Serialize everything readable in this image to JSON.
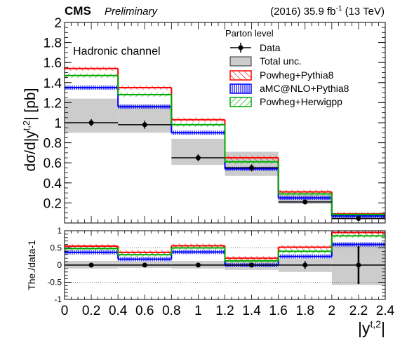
{
  "header": {
    "experiment": "CMS",
    "status": "Preliminary",
    "lumi_prefix": "(2016) 35.9 fb",
    "lumi_exp": "-1",
    "lumi_suffix": " (13 TeV)"
  },
  "colors": {
    "data": "#000000",
    "total_unc": "#cccccc",
    "powheg_pythia8": "#ff0000",
    "amcatnlo_pythia8": "#0000ff",
    "powheg_herwigpp": "#00aa00"
  },
  "chart_data": [
    {
      "id": "main",
      "type": "step",
      "annotation": "Hadronic channel",
      "ylabel": {
        "prefix": "dσ/d|y",
        "sup": "t,2",
        "suffix": "| [pb]"
      },
      "legend_title": "Parton level",
      "legend_placement": "top-right",
      "xlim": [
        0,
        2.4
      ],
      "ylim": [
        0,
        2
      ],
      "y_ticks": [
        "0.2",
        "0.4",
        "0.6",
        "0.8",
        "1",
        "1.2",
        "1.4",
        "1.6",
        "1.8",
        "2"
      ],
      "bin_edges": [
        0,
        0.4,
        0.8,
        1.2,
        1.6,
        2.0,
        2.4
      ],
      "bin_centers": [
        0.2,
        0.6,
        1.0,
        1.4,
        1.8,
        2.2
      ],
      "data": {
        "name": "Data",
        "values": [
          1.0,
          0.98,
          0.65,
          0.55,
          0.21,
          0.045
        ],
        "errors": [
          0.035,
          0.04,
          0.035,
          0.035,
          0.025,
          0.012
        ]
      },
      "total_unc": {
        "name": "Total unc.",
        "low": [
          0.9,
          0.9,
          0.58,
          0.47,
          0.19,
          0.035
        ],
        "high": [
          1.24,
          1.18,
          0.84,
          0.71,
          0.28,
          0.07
        ]
      },
      "series": [
        {
          "name": "Powheg+Pythia8",
          "key": "powheg_pythia8",
          "values": [
            1.54,
            1.35,
            1.03,
            0.65,
            0.31,
            0.09
          ]
        },
        {
          "name": "aMC@NLO+Pythia8",
          "key": "amcatnlo_pythia8",
          "values": [
            1.35,
            1.16,
            0.9,
            0.54,
            0.25,
            0.07
          ]
        },
        {
          "name": "Powheg+Herwigpp",
          "key": "powheg_herwigpp",
          "values": [
            1.47,
            1.28,
            0.98,
            0.61,
            0.29,
            0.085
          ]
        }
      ]
    },
    {
      "id": "ratio",
      "type": "step",
      "ylabel": "The./data-1",
      "xlabel": {
        "prefix": "|y",
        "sup": "t,2",
        "suffix": "|"
      },
      "xlim": [
        0,
        2.4
      ],
      "ylim": [
        -1,
        1
      ],
      "y_ticks": [
        "-1",
        "-0.5",
        "0",
        "0.5",
        "1"
      ],
      "x_ticks": [
        "0",
        "0.2",
        "0.4",
        "0.6",
        "0.8",
        "1",
        "1.2",
        "1.4",
        "1.6",
        "1.8",
        "2",
        "2.2",
        "2.4"
      ],
      "bin_edges": [
        0,
        0.4,
        0.8,
        1.2,
        1.6,
        2.0,
        2.4
      ],
      "bin_centers": [
        0.2,
        0.6,
        1.0,
        1.4,
        1.8,
        2.2
      ],
      "data": {
        "values": [
          0,
          0,
          0,
          0,
          0,
          0
        ],
        "errors": [
          0.03,
          0.04,
          0.05,
          0.06,
          0.12,
          0.55
        ]
      },
      "total_unc": {
        "low": [
          -0.1,
          -0.08,
          -0.1,
          -0.14,
          -0.2,
          -0.58
        ],
        "high": [
          0.12,
          0.1,
          0.12,
          0.14,
          0.18,
          0.65
        ]
      },
      "series": [
        {
          "key": "powheg_pythia8",
          "values": [
            0.55,
            0.37,
            0.56,
            0.2,
            0.52,
            0.95
          ]
        },
        {
          "key": "amcatnlo_pythia8",
          "values": [
            0.37,
            0.17,
            0.38,
            0.0,
            0.25,
            0.6
          ]
        },
        {
          "key": "powheg_herwigpp",
          "values": [
            0.48,
            0.3,
            0.5,
            0.12,
            0.4,
            0.85
          ]
        }
      ]
    }
  ]
}
